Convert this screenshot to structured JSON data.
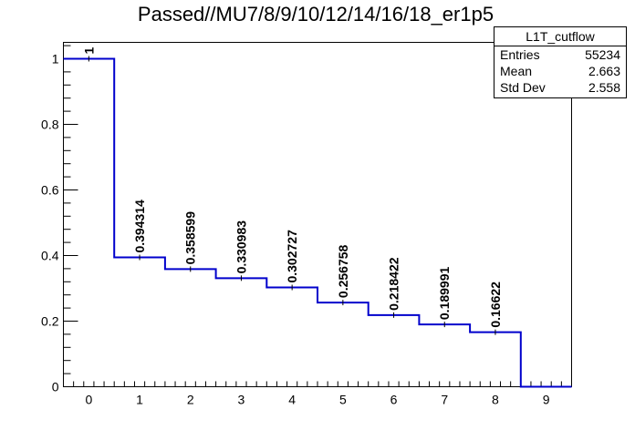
{
  "chart_data": {
    "type": "histogram",
    "title": "Passed//MU7/8/9/10/12/14/16/18_er1p5",
    "xlabel": "",
    "ylabel": "",
    "x": [
      0,
      1,
      2,
      3,
      4,
      5,
      6,
      7,
      8,
      9
    ],
    "values": [
      1,
      0.394314,
      0.358599,
      0.330983,
      0.302727,
      0.256758,
      0.218422,
      0.189991,
      0.16622,
      0
    ],
    "data_labels": [
      "1",
      "0.394314",
      "0.358599",
      "0.330983",
      "0.302727",
      "0.256758",
      "0.218422",
      "0.189991",
      "0.16622",
      ""
    ],
    "xlim": [
      -0.5,
      9.5
    ],
    "ylim": [
      0,
      1.05
    ],
    "x_ticks": [
      "0",
      "1",
      "2",
      "3",
      "4",
      "5",
      "6",
      "7",
      "8",
      "9"
    ],
    "y_ticks": [
      "0",
      "0.2",
      "0.4",
      "0.6",
      "0.8",
      "1"
    ],
    "y_tick_values": [
      0,
      0.2,
      0.4,
      0.6,
      0.8,
      1
    ],
    "line_color": "#0000cc",
    "grid": false,
    "legend": "none",
    "stats_box": {
      "name": "L1T_cutflow",
      "rows": [
        {
          "label": "Entries",
          "value": "55234"
        },
        {
          "label": "Mean",
          "value": "2.663"
        },
        {
          "label": "Std Dev",
          "value": "2.558"
        }
      ]
    }
  }
}
